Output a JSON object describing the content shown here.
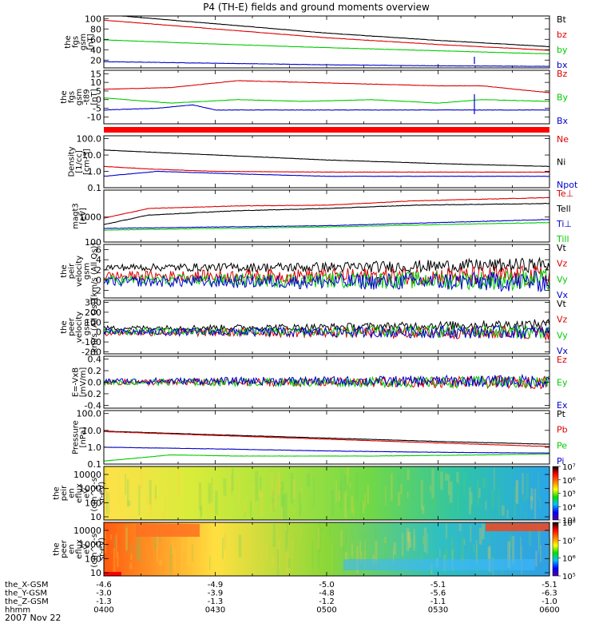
{
  "title": "P4 (TH-E) fields and ground moments overview",
  "x_axis": {
    "rows": [
      {
        "label": "the_X-GSM",
        "values": [
          "-4.6",
          "-4.9",
          "-5.0",
          "-5.1",
          "-5.1"
        ]
      },
      {
        "label": "the_Y-GSM",
        "values": [
          "-3.0",
          "-3.9",
          "-4.8",
          "-5.6",
          "-6.3"
        ]
      },
      {
        "label": "the_Z-GSM",
        "values": [
          "-1.3",
          "-1.3",
          "-1.2",
          "-1.1",
          "-1.0"
        ]
      },
      {
        "label": "hhmm",
        "values": [
          "0400",
          "0430",
          "0500",
          "0530",
          "0600"
        ]
      }
    ],
    "date": "2007 Nov 22",
    "tick_count": 5
  },
  "chart_data": [
    {
      "type": "line",
      "ylabel": [
        "the",
        "fgs",
        "gsm",
        "[nT]"
      ],
      "yticks": [
        "20",
        "40",
        "60",
        "80",
        "100"
      ],
      "ylim": [
        5,
        105
      ],
      "series": [
        {
          "name": "Bt",
          "color": "#000000",
          "points": [
            [
              0,
              108
            ],
            [
              0.25,
              90
            ],
            [
              0.5,
              72
            ],
            [
              0.75,
              58
            ],
            [
              1,
              46
            ]
          ]
        },
        {
          "name": "bz",
          "color": "#dd0000",
          "points": [
            [
              0,
              97
            ],
            [
              0.25,
              80
            ],
            [
              0.5,
              63
            ],
            [
              0.75,
              50
            ],
            [
              1,
              39
            ]
          ]
        },
        {
          "name": "by",
          "color": "#00cc00",
          "points": [
            [
              0,
              59
            ],
            [
              0.25,
              51
            ],
            [
              0.5,
              44
            ],
            [
              0.75,
              38
            ],
            [
              1,
              32
            ]
          ]
        },
        {
          "name": "bx",
          "color": "#0000cc",
          "points": [
            [
              0,
              17
            ],
            [
              0.25,
              14
            ],
            [
              0.5,
              11
            ],
            [
              0.75,
              9
            ],
            [
              1,
              8
            ]
          ]
        }
      ]
    },
    {
      "type": "line",
      "ylabel": [
        "the",
        "fgs",
        "gsm",
        "-t89",
        "[nT]"
      ],
      "yticks": [
        "-10",
        "-5",
        "0",
        "5",
        "10",
        "15"
      ],
      "ylim": [
        -14,
        17
      ],
      "series": [
        {
          "name": "Bz",
          "color": "#dd0000",
          "points": [
            [
              0,
              6
            ],
            [
              0.15,
              7
            ],
            [
              0.3,
              11
            ],
            [
              0.45,
              10
            ],
            [
              0.6,
              9
            ],
            [
              0.75,
              8
            ],
            [
              0.85,
              8
            ],
            [
              1,
              4
            ]
          ]
        },
        {
          "name": "By",
          "color": "#00cc00",
          "points": [
            [
              0,
              1
            ],
            [
              0.15,
              -2
            ],
            [
              0.3,
              0
            ],
            [
              0.45,
              -1
            ],
            [
              0.6,
              0
            ],
            [
              0.75,
              -2
            ],
            [
              0.85,
              0
            ],
            [
              1,
              -1
            ]
          ]
        },
        {
          "name": "Bx",
          "color": "#0000cc",
          "points": [
            [
              0,
              -6
            ],
            [
              0.12,
              -5
            ],
            [
              0.2,
              -3
            ],
            [
              0.25,
              -6
            ],
            [
              0.4,
              -6
            ],
            [
              0.6,
              -6
            ],
            [
              0.8,
              -6
            ],
            [
              1,
              -6
            ]
          ]
        }
      ]
    },
    {
      "type": "line",
      "log": true,
      "ylabel": [
        "Density",
        "[1/cc]",
        "[cm-3]"
      ],
      "yticks": [
        "0.1",
        "1.0",
        "10.0",
        "100.0"
      ],
      "ylim": [
        0.1,
        150
      ],
      "series": [
        {
          "name": "Ne",
          "color": "#dd0000",
          "points": [
            [
              0,
              2
            ],
            [
              0.1,
              1.4
            ],
            [
              0.25,
              1
            ],
            [
              0.5,
              0.9
            ],
            [
              0.75,
              0.9
            ],
            [
              1,
              0.9
            ]
          ]
        },
        {
          "name": "Ni",
          "color": "#000000",
          "points": [
            [
              0,
              20
            ],
            [
              0.25,
              10
            ],
            [
              0.5,
              5
            ],
            [
              0.75,
              3
            ],
            [
              1,
              2
            ]
          ]
        },
        {
          "name": "Npot",
          "color": "#0000cc",
          "points": [
            [
              0,
              0.5
            ],
            [
              0.12,
              1
            ],
            [
              0.3,
              0.7
            ],
            [
              0.5,
              0.5
            ],
            [
              0.75,
              0.5
            ],
            [
              1,
              0.5
            ]
          ]
        }
      ]
    },
    {
      "type": "line",
      "log": true,
      "ylabel": [
        "magt3",
        "[eV]"
      ],
      "yticks": [
        "100",
        "1000"
      ],
      "ylim": [
        100,
        12000
      ],
      "series": [
        {
          "name": "Te⊥",
          "color": "#dd0000",
          "points": [
            [
              0,
              900
            ],
            [
              0.1,
              2200
            ],
            [
              0.3,
              2800
            ],
            [
              0.5,
              3000
            ],
            [
              0.7,
              4500
            ],
            [
              1,
              6000
            ]
          ]
        },
        {
          "name": "Tell",
          "color": "#000000",
          "points": [
            [
              0,
              500
            ],
            [
              0.1,
              1200
            ],
            [
              0.3,
              1800
            ],
            [
              0.5,
              2200
            ],
            [
              0.7,
              3000
            ],
            [
              1,
              3500
            ]
          ]
        },
        {
          "name": "Ti⊥",
          "color": "#0000cc",
          "points": [
            [
              0,
              350
            ],
            [
              0.25,
              400
            ],
            [
              0.5,
              450
            ],
            [
              0.75,
              600
            ],
            [
              1,
              800
            ]
          ]
        },
        {
          "name": "Till",
          "color": "#00cc00",
          "points": [
            [
              0,
              300
            ],
            [
              0.25,
              350
            ],
            [
              0.5,
              400
            ],
            [
              0.75,
              500
            ],
            [
              1,
              600
            ]
          ]
        }
      ]
    },
    {
      "type": "line",
      "ylabel": [
        "the",
        "peir",
        "velocity",
        "gsm",
        "[km/s (All Qs)]"
      ],
      "yticks": [
        "-2",
        "0",
        "2",
        "4",
        "6"
      ],
      "ylim": [
        -3.5,
        7
      ],
      "series": [
        {
          "name": "Vt",
          "color": "#000000",
          "points": [
            [
              0,
              2.5
            ],
            [
              0.5,
              2.5
            ],
            [
              1,
              3
            ]
          ]
        },
        {
          "name": "Vz",
          "color": "#dd0000",
          "points": [
            [
              0,
              0.8
            ],
            [
              0.5,
              0.8
            ],
            [
              1,
              0.8
            ]
          ]
        },
        {
          "name": "Vy",
          "color": "#00cc00",
          "points": [
            [
              0,
              0
            ],
            [
              0.5,
              0
            ],
            [
              1,
              0
            ]
          ]
        },
        {
          "name": "Vx",
          "color": "#0000cc",
          "points": [
            [
              0,
              -0.3
            ],
            [
              0.5,
              -0.3
            ],
            [
              1,
              -0.3
            ]
          ]
        }
      ]
    },
    {
      "type": "line",
      "ylabel": [
        "the",
        "peer",
        "velocity",
        "gsm",
        "[km/s (All Qs)]"
      ],
      "yticks": [
        "-200",
        "-100",
        "0",
        "100",
        "200",
        "300"
      ],
      "ylim": [
        -220,
        320
      ],
      "series": [
        {
          "name": "Vt",
          "color": "#000000",
          "points": [
            [
              0,
              40
            ],
            [
              0.5,
              50
            ],
            [
              1,
              80
            ]
          ]
        },
        {
          "name": "Vz",
          "color": "#dd0000",
          "points": [
            [
              0,
              -5
            ],
            [
              0.5,
              -5
            ],
            [
              1,
              -5
            ]
          ]
        },
        {
          "name": "Vy",
          "color": "#00cc00",
          "points": [
            [
              0,
              5
            ],
            [
              0.5,
              5
            ],
            [
              1,
              5
            ]
          ]
        },
        {
          "name": "Vx",
          "color": "#0000cc",
          "points": [
            [
              0,
              0
            ],
            [
              0.5,
              0
            ],
            [
              1,
              0
            ]
          ]
        }
      ]
    },
    {
      "type": "line",
      "ylabel": [
        "E=-VxB",
        "[mV/m]"
      ],
      "yticks": [
        "-0.4",
        "-0.2",
        "0.0",
        "0.2",
        "0.4"
      ],
      "ylim": [
        -0.45,
        0.45
      ],
      "series": [
        {
          "name": "Ez",
          "color": "#dd0000",
          "points": [
            [
              0,
              0
            ],
            [
              0.5,
              0
            ],
            [
              1,
              0
            ]
          ]
        },
        {
          "name": "Ey",
          "color": "#00cc00",
          "points": [
            [
              0,
              0
            ],
            [
              0.5,
              0
            ],
            [
              1,
              0
            ]
          ]
        },
        {
          "name": "Ex",
          "color": "#0000cc",
          "points": [
            [
              0,
              0.02
            ],
            [
              0.5,
              0.02
            ],
            [
              1,
              0.02
            ]
          ]
        }
      ]
    },
    {
      "type": "line",
      "log": true,
      "ylabel": [
        "Pressure",
        "[nPa]"
      ],
      "yticks": [
        "0.1",
        "1.0",
        "10.0",
        "100.0"
      ],
      "ylim": [
        0.1,
        150
      ],
      "series": [
        {
          "name": "Pt",
          "color": "#000000",
          "points": [
            [
              0,
              9
            ],
            [
              0.25,
              5.5
            ],
            [
              0.5,
              3.5
            ],
            [
              0.75,
              2.2
            ],
            [
              1,
              1.5
            ]
          ]
        },
        {
          "name": "Pb",
          "color": "#dd0000",
          "points": [
            [
              0,
              8.5
            ],
            [
              0.25,
              5
            ],
            [
              0.5,
              3
            ],
            [
              0.75,
              1.8
            ],
            [
              1,
              1.1
            ]
          ]
        },
        {
          "name": "Pe",
          "color": "#00cc00",
          "points": [
            [
              0,
              0.15
            ],
            [
              0.15,
              0.35
            ],
            [
              0.3,
              0.3
            ],
            [
              0.6,
              0.3
            ],
            [
              0.85,
              0.35
            ],
            [
              1,
              0.4
            ]
          ]
        },
        {
          "name": "Pi",
          "color": "#0000cc",
          "points": [
            [
              0,
              1
            ],
            [
              0.25,
              0.8
            ],
            [
              0.5,
              0.6
            ],
            [
              0.75,
              0.5
            ],
            [
              1,
              0.45
            ]
          ]
        }
      ]
    },
    {
      "type": "heatmap",
      "ylabel": [
        "the",
        "peir",
        "en",
        "eflux",
        "eV",
        "(cm^2-s-",
        "sr-eV)"
      ],
      "yticks": [
        "10",
        "100",
        "1000",
        "10000"
      ],
      "colorbar_ticks": [
        "10³",
        "10⁴",
        "10⁵",
        "10⁶",
        "10⁷"
      ],
      "gradient": [
        "#ffe14a",
        "#d8ec3a",
        "#a8e23e",
        "#70d848",
        "#2fc4a8",
        "#2aa6e8"
      ]
    },
    {
      "type": "heatmap",
      "ylabel": [
        "the",
        "peer",
        "en",
        "eflux",
        "eV",
        "(cm^2-s-",
        "sr-eV)"
      ],
      "yticks": [
        "10",
        "100",
        "1000",
        "10000"
      ],
      "colorbar_ticks": [
        "10⁵",
        "10⁶",
        "10⁷",
        "10⁸"
      ],
      "gradient": [
        "#ff5a10",
        "#ffe040",
        "#8ad838",
        "#30c0c0",
        "#2fa0e6"
      ]
    }
  ]
}
